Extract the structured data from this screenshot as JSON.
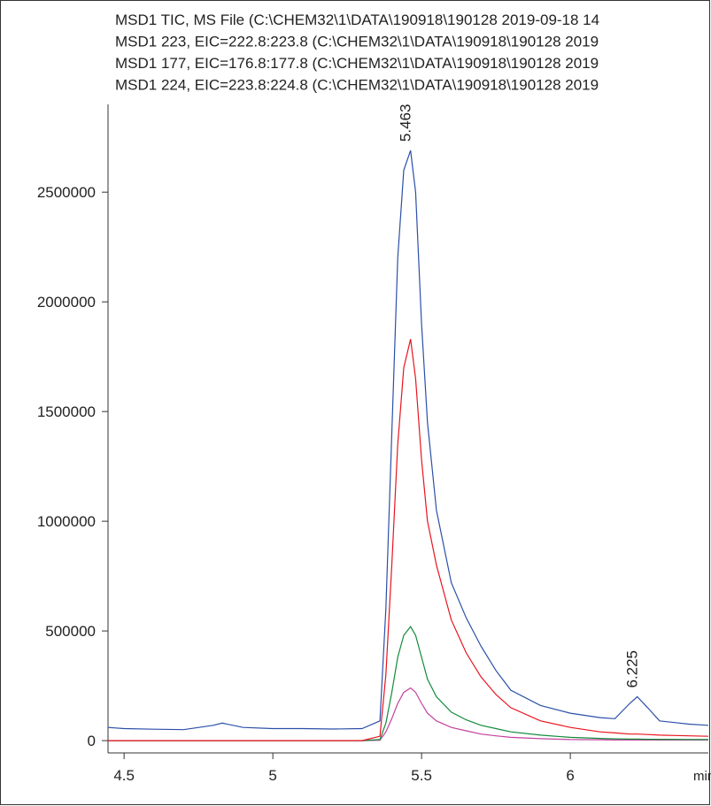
{
  "chart_data": {
    "type": "line",
    "x": [
      4.446,
      4.5,
      4.6,
      4.7,
      4.8,
      4.83,
      4.9,
      5.0,
      5.1,
      5.2,
      5.3,
      5.36,
      5.38,
      5.4,
      5.42,
      5.44,
      5.463,
      5.48,
      5.5,
      5.52,
      5.55,
      5.6,
      5.65,
      5.7,
      5.75,
      5.8,
      5.9,
      6.0,
      6.1,
      6.15,
      6.2,
      6.225,
      6.26,
      6.3,
      6.4,
      6.464
    ],
    "series": [
      {
        "name": "MSD1 TIC, MS File (C:\\CHEM32\\1\\DATA\\190918\\190128 2019-09-18 14",
        "color": "#2b4fa8",
        "values": [
          60000,
          55000,
          52000,
          50000,
          70000,
          80000,
          60000,
          55000,
          55000,
          53000,
          55000,
          90000,
          600000,
          1400000,
          2200000,
          2600000,
          2690000,
          2500000,
          1900000,
          1450000,
          1050000,
          720000,
          560000,
          430000,
          320000,
          230000,
          160000,
          125000,
          105000,
          100000,
          170000,
          200000,
          150000,
          90000,
          75000,
          70000
        ]
      },
      {
        "name": "MSD1 223, EIC=222.8:223.8 (C:\\CHEM32\\1\\DATA\\190918\\190128 2019",
        "color": "#e8141e",
        "values": [
          0,
          0,
          0,
          0,
          0,
          0,
          0,
          0,
          0,
          0,
          0,
          20000,
          300000,
          800000,
          1350000,
          1700000,
          1830000,
          1650000,
          1280000,
          1000000,
          800000,
          550000,
          400000,
          290000,
          210000,
          150000,
          90000,
          60000,
          40000,
          35000,
          30000,
          30000,
          28000,
          25000,
          22000,
          20000
        ]
      },
      {
        "name": "MSD1 177, EIC=176.8:177.8 (C:\\CHEM32\\1\\DATA\\190918\\190128 2019",
        "color": "#138a3c",
        "values": [
          0,
          0,
          0,
          0,
          0,
          0,
          0,
          0,
          0,
          0,
          0,
          5000,
          80000,
          220000,
          380000,
          480000,
          520000,
          480000,
          380000,
          280000,
          200000,
          130000,
          95000,
          70000,
          55000,
          40000,
          25000,
          15000,
          10000,
          8000,
          7000,
          7000,
          6000,
          6000,
          5000,
          5000
        ]
      },
      {
        "name": "MSD1 224, EIC=223.8:224.8 (C:\\CHEM32\\1\\DATA\\190918\\190128 2019",
        "color": "#c4409e",
        "values": [
          0,
          0,
          0,
          0,
          0,
          0,
          0,
          0,
          0,
          0,
          0,
          2000,
          40000,
          100000,
          170000,
          220000,
          240000,
          220000,
          170000,
          125000,
          90000,
          60000,
          45000,
          30000,
          22000,
          15000,
          9000,
          5000,
          4000,
          3000,
          3000,
          3000,
          3000,
          3000,
          3000,
          3000
        ]
      }
    ],
    "annotations": [
      {
        "text": "5.463",
        "x": 5.463,
        "y": 2690000
      },
      {
        "text": "6.225",
        "x": 6.225,
        "y": 200000
      }
    ],
    "xlabel": "min",
    "xlim": [
      4.446,
      6.464
    ],
    "xticks": [
      4.5,
      5,
      5.5,
      6
    ],
    "ylim": [
      -56000,
      2900000
    ],
    "yticks": [
      0,
      500000,
      1000000,
      1500000,
      2000000,
      2500000
    ]
  }
}
